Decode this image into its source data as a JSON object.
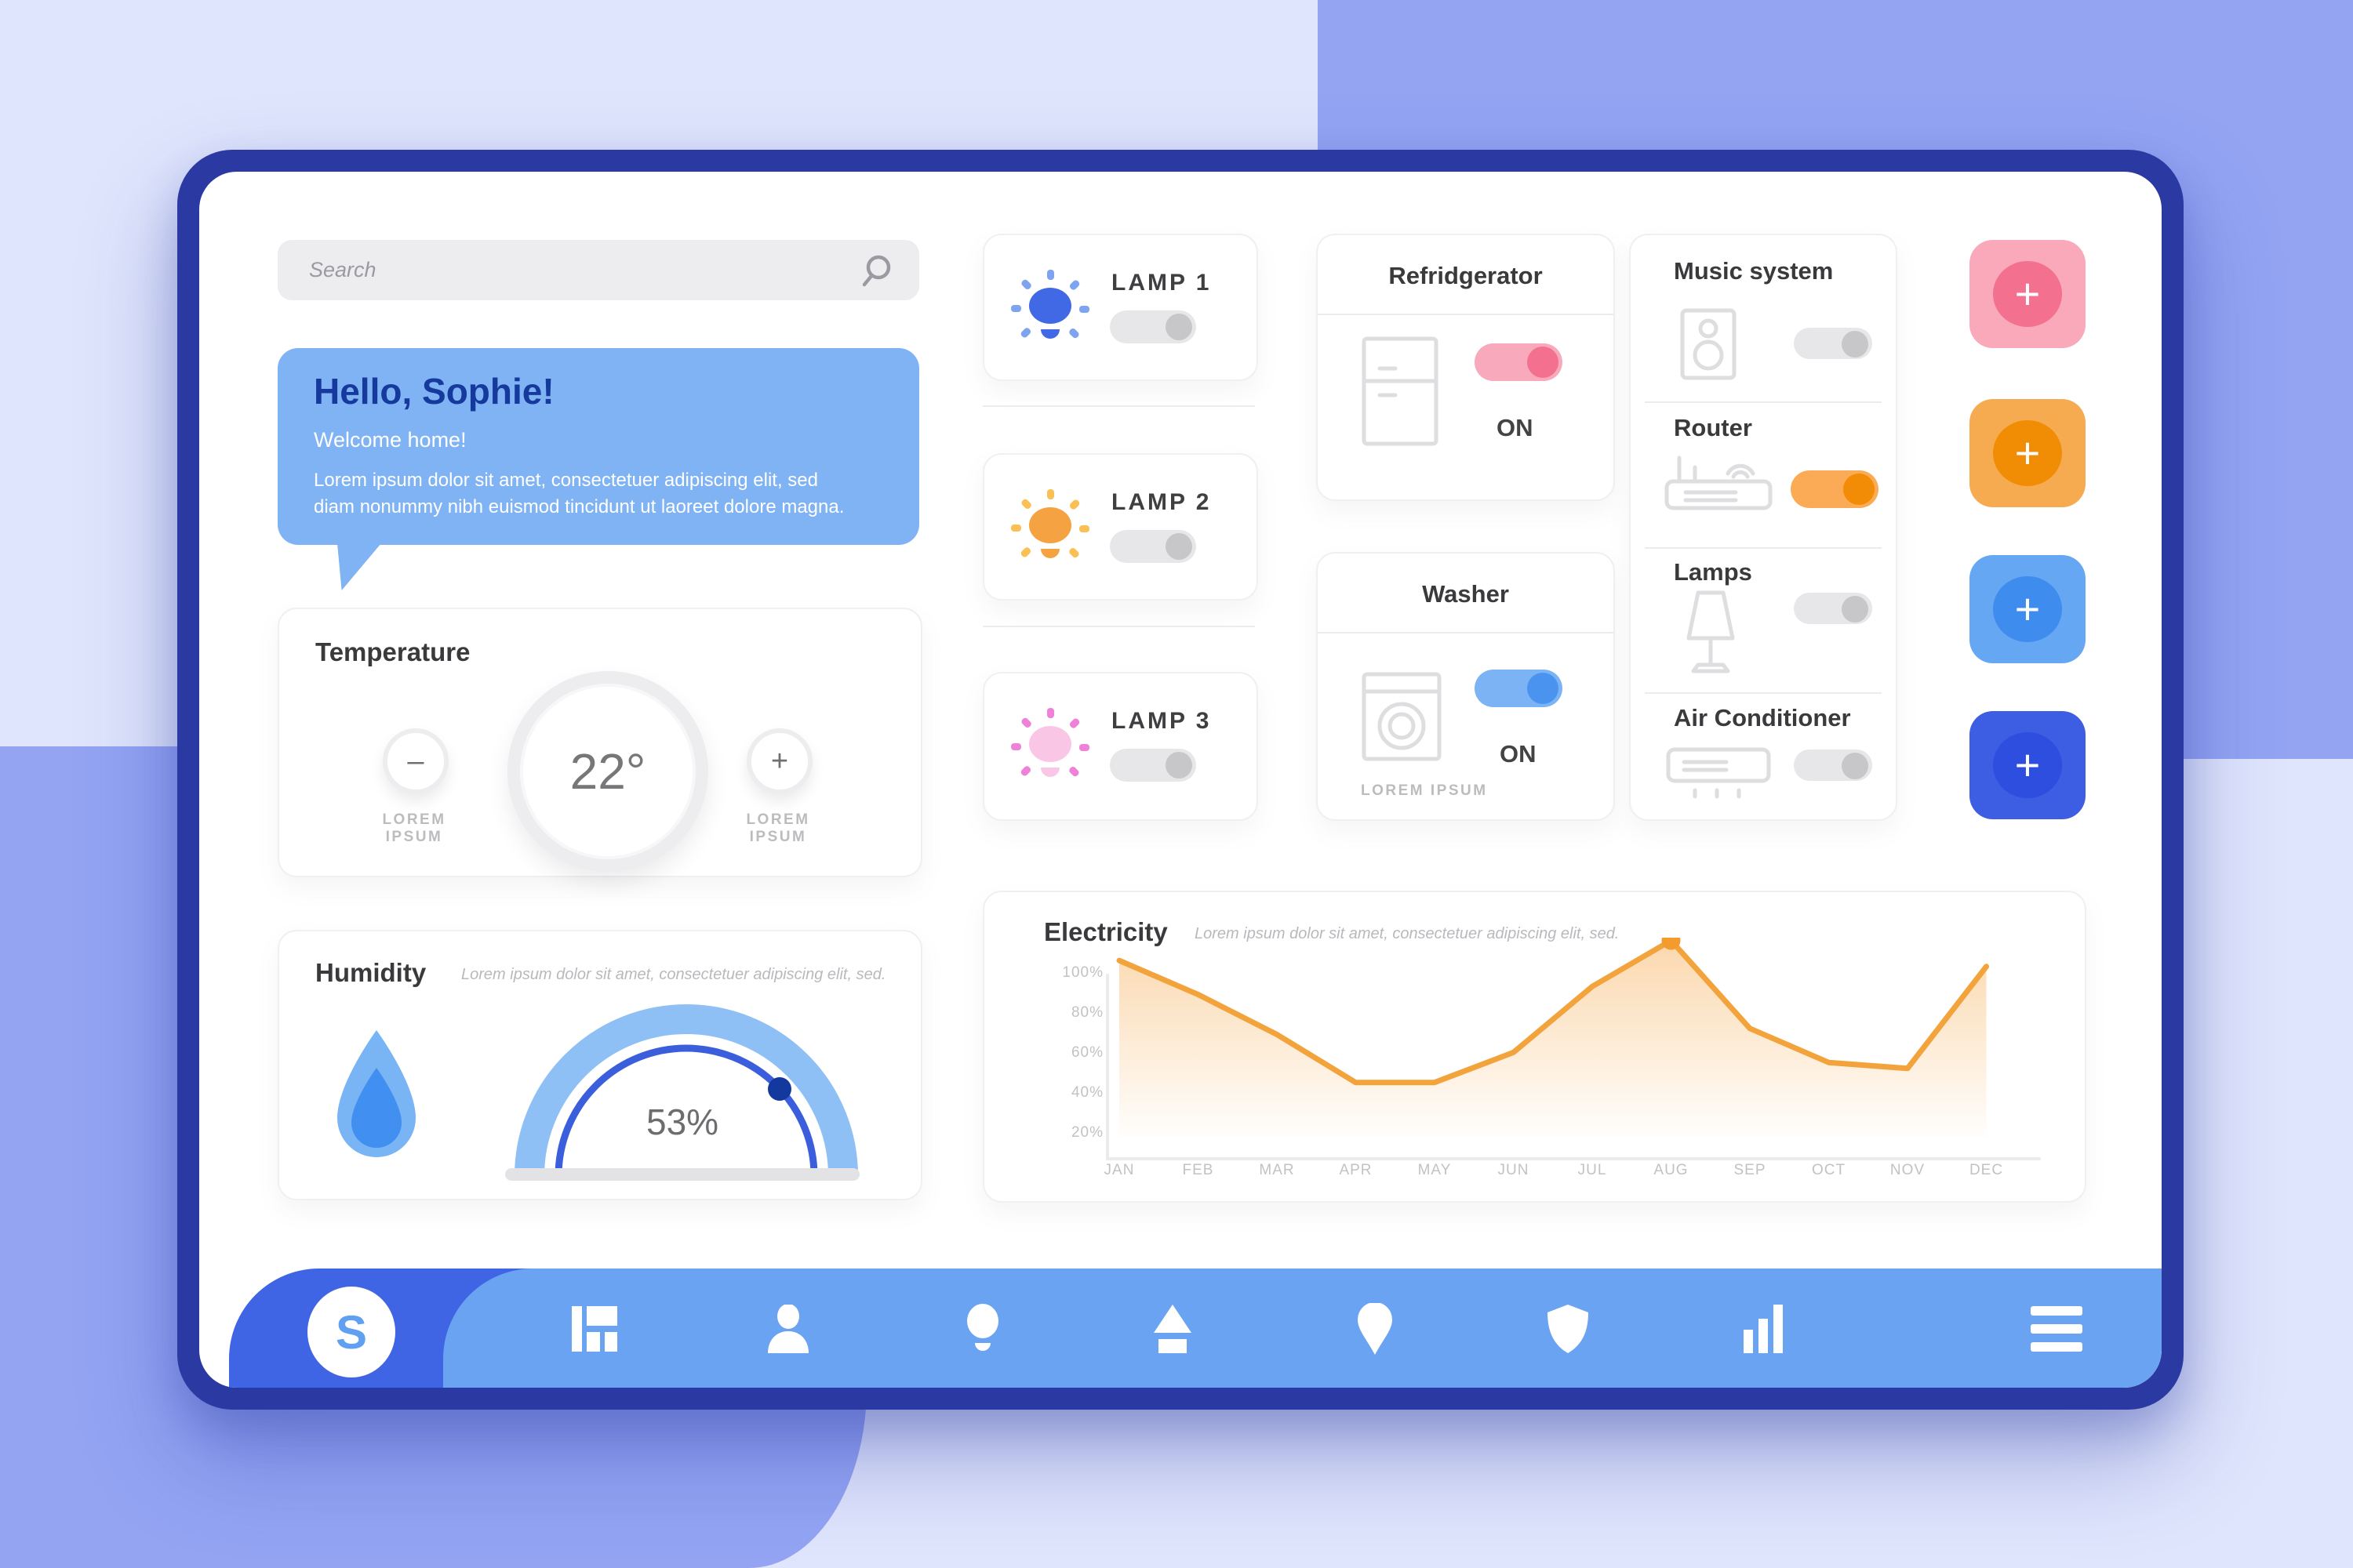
{
  "app": {
    "logo_letter": "S"
  },
  "colors": {
    "background_lavender": "#dfe5fc",
    "background_periwinkle": "#94a4f3",
    "frame_navy": "#2b3aa2",
    "nav_light_blue": "#69a3f1",
    "nav_dark_blue": "#4065e4",
    "greeting_blue": "#80b3f3",
    "accent_pink": "#f3708f",
    "accent_orange": "#f28b06",
    "accent_blue": "#4a94ef",
    "accent_royal": "#3d5de2",
    "chart_orange": "#f3a33c"
  },
  "search": {
    "placeholder": "Search"
  },
  "greeting": {
    "title": "Hello, Sophie!",
    "subtitle": "Welcome home!",
    "body": "Lorem ipsum dolor sit amet, consectetuer adipiscing elit, sed diam nonummy nibh euismod tincidunt ut laoreet dolore magna."
  },
  "temperature": {
    "title": "Temperature",
    "value": "22°",
    "minus_glyph": "–",
    "plus_glyph": "+",
    "minus_label": "LOREM IPSUM",
    "plus_label": "LOREM IPSUM"
  },
  "humidity": {
    "title": "Humidity",
    "subtitle": "Lorem ipsum dolor sit amet, consectetuer adipiscing elit, sed.",
    "value": "53%"
  },
  "lamps": [
    {
      "label": "LAMP 1",
      "state": "off",
      "bulb_color": "#4169e6",
      "ray_color": "#7ea4f0"
    },
    {
      "label": "LAMP 2",
      "state": "off",
      "bulb_color": "#f5a243",
      "ray_color": "#fac055"
    },
    {
      "label": "LAMP 3",
      "state": "off",
      "bulb_color": "#fac6e6",
      "ray_color": "#ee82d8"
    }
  ],
  "appliances": [
    {
      "title": "Refridgerator",
      "status": "ON",
      "state": "on",
      "accent": "#f3708f"
    },
    {
      "title": "Washer",
      "status": "ON",
      "state": "on",
      "accent": "#4a94ef",
      "footer": "LOREM IPSUM"
    }
  ],
  "devices": [
    {
      "label": "Music system",
      "state": "off"
    },
    {
      "label": "Router",
      "state": "on",
      "accent": "#f28b06"
    },
    {
      "label": "Lamps",
      "state": "off"
    },
    {
      "label": "Air Conditioner",
      "state": "off"
    }
  ],
  "add_buttons": [
    {
      "icon": "plus",
      "color": "#f3708f"
    },
    {
      "icon": "plus",
      "color": "#f08d04"
    },
    {
      "icon": "plus",
      "color": "#3d8cee"
    },
    {
      "icon": "plus",
      "color": "#2d4ede"
    }
  ],
  "ui": {
    "plus": "+"
  },
  "chart_data": {
    "type": "area",
    "title": "Electricity",
    "subtitle": "Lorem ipsum dolor sit amet, consectetuer adipiscing elit, sed.",
    "x": [
      "JAN",
      "FEB",
      "MAR",
      "APR",
      "MAY",
      "JUN",
      "JUL",
      "AUG",
      "SEP",
      "OCT",
      "NOV",
      "DEC"
    ],
    "values": [
      98,
      81,
      61,
      37,
      37,
      52,
      85,
      108,
      64,
      47,
      44,
      95
    ],
    "y_ticks": [
      "100%",
      "80%",
      "60%",
      "40%",
      "20%"
    ],
    "y_tick_values": [
      100,
      80,
      60,
      40,
      20
    ],
    "ylim": [
      0,
      110
    ],
    "unit": "%",
    "line_color": "#f3a33c",
    "highlight_index": 7,
    "grid": false,
    "legend": false
  },
  "nav": {
    "icons": [
      "dashboard",
      "user",
      "bulb",
      "eject",
      "location",
      "shield",
      "stats",
      "menu"
    ]
  }
}
